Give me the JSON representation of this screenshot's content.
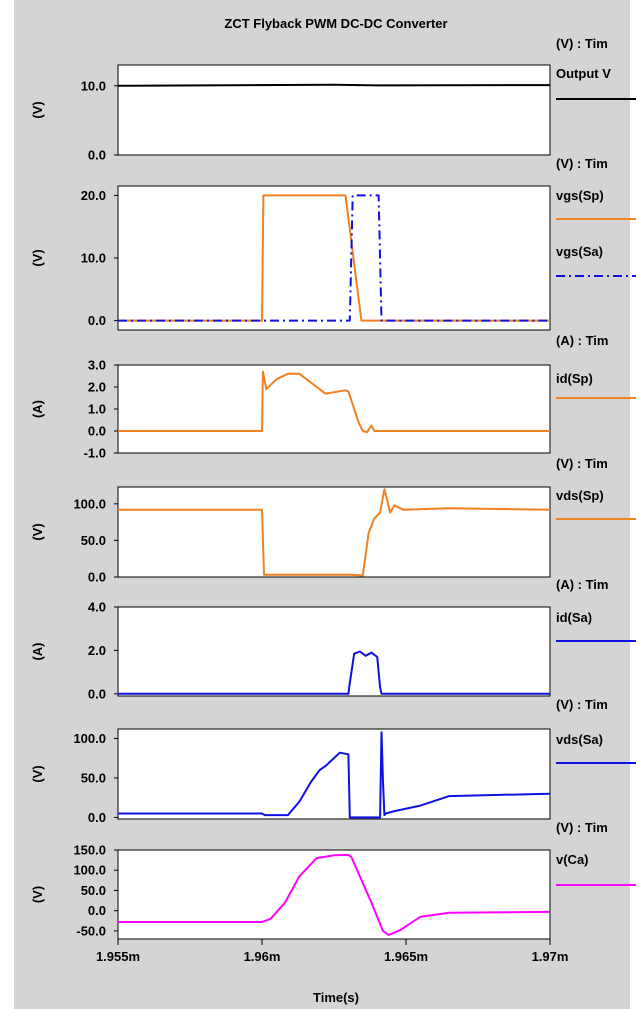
{
  "title": "ZCT Flyback PWM DC-DC Converter",
  "xlabel": "Time(s)",
  "x_ticks": [
    "1.955m",
    "1.96m",
    "1.965m",
    "1.97m"
  ],
  "x_tick_values": [
    1.955,
    1.96,
    1.965,
    1.97
  ],
  "xlim": [
    1.955,
    1.97
  ],
  "colors": {
    "background": "#d4d4d4",
    "plot_bg": "#ffffff",
    "black": "#000000",
    "orange": "#f08020",
    "blue": "#1010e0",
    "magenta": "#ff00ff"
  },
  "chart_data": [
    {
      "type": "line",
      "ylabel": "(V)",
      "ylim": [
        0,
        13
      ],
      "y_ticks": [
        "0.0",
        "10.0"
      ],
      "y_tick_values": [
        0,
        10
      ],
      "legend_header": "(V) : Tim",
      "series": [
        {
          "name": "Output V",
          "color": "#000000",
          "dash": "none",
          "x": [
            1.955,
            1.9625,
            1.964,
            1.97
          ],
          "y": [
            10.0,
            10.15,
            10.05,
            10.1
          ]
        }
      ]
    },
    {
      "type": "line",
      "ylabel": "(V)",
      "ylim": [
        -1.5,
        21.5
      ],
      "y_ticks": [
        "0.0",
        "10.0",
        "20.0"
      ],
      "y_tick_values": [
        0,
        10,
        20
      ],
      "legend_header": "(V) : Tim",
      "series": [
        {
          "name": "vgs(Sp)",
          "color": "#f08020",
          "dash": "none",
          "x": [
            1.955,
            1.96,
            1.96005,
            1.9629,
            1.96345,
            1.97
          ],
          "y": [
            0,
            0,
            20,
            20,
            0,
            0
          ]
        },
        {
          "name": "vgs(Sa)",
          "color": "#1010e0",
          "dash": "dashdot",
          "x": [
            1.955,
            1.96305,
            1.96315,
            1.96405,
            1.96415,
            1.97
          ],
          "y": [
            0,
            0,
            20,
            20,
            0,
            0
          ]
        }
      ]
    },
    {
      "type": "line",
      "ylabel": "(A)",
      "ylim": [
        -1.0,
        3.0
      ],
      "y_ticks": [
        "-1.0",
        "0.0",
        "1.0",
        "2.0",
        "3.0"
      ],
      "y_tick_values": [
        -1,
        0,
        1,
        2,
        3
      ],
      "legend_header": "(A) : Tim",
      "series": [
        {
          "name": "id(Sp)",
          "color": "#f08020",
          "dash": "none",
          "x": [
            1.955,
            1.96,
            1.96003,
            1.96015,
            1.9605,
            1.9609,
            1.9613,
            1.9622,
            1.9629,
            1.963,
            1.96335,
            1.9635,
            1.96365,
            1.9638,
            1.9639,
            1.9641,
            1.97
          ],
          "y": [
            0,
            0,
            2.7,
            1.9,
            2.35,
            2.6,
            2.6,
            1.7,
            1.85,
            1.8,
            0.4,
            0.0,
            -0.05,
            0.25,
            0.0,
            0.0,
            0.0
          ]
        }
      ]
    },
    {
      "type": "line",
      "ylabel": "(V)",
      "ylim": [
        0,
        123
      ],
      "y_ticks": [
        "0.0",
        "50.0",
        "100.0"
      ],
      "y_tick_values": [
        0,
        50,
        100
      ],
      "legend_header": "(V) : Tim",
      "series": [
        {
          "name": "vds(Sp)",
          "color": "#f08020",
          "dash": "none",
          "x": [
            1.955,
            1.96,
            1.96007,
            1.9631,
            1.9635,
            1.9637,
            1.9639,
            1.9641,
            1.96425,
            1.96445,
            1.9646,
            1.9649,
            1.9665,
            1.97
          ],
          "y": [
            92,
            92,
            3,
            3,
            2,
            60,
            80,
            88,
            120,
            88,
            98,
            92,
            94,
            92
          ]
        }
      ]
    },
    {
      "type": "line",
      "ylabel": "(A)",
      "ylim": [
        -0.1,
        4.0
      ],
      "y_ticks": [
        "0.0",
        "2.0",
        "4.0"
      ],
      "y_tick_values": [
        0,
        2,
        4
      ],
      "legend_header": "(A) : Tim",
      "series": [
        {
          "name": "id(Sa)",
          "color": "#1010e0",
          "dash": "none",
          "x": [
            1.955,
            1.963,
            1.96305,
            1.9632,
            1.9634,
            1.9636,
            1.9638,
            1.964,
            1.9641,
            1.96415,
            1.9643,
            1.97
          ],
          "y": [
            0,
            0,
            0.5,
            1.85,
            1.95,
            1.75,
            1.9,
            1.7,
            0.3,
            0,
            0,
            0
          ]
        }
      ]
    },
    {
      "type": "line",
      "ylabel": "(V)",
      "ylim": [
        -2,
        112
      ],
      "y_ticks": [
        "0.0",
        "50.0",
        "100.0"
      ],
      "y_tick_values": [
        0,
        50,
        100
      ],
      "legend_header": "(V) : Tim",
      "series": [
        {
          "name": "vds(Sa)",
          "color": "#1010e0",
          "dash": "none",
          "x": [
            1.955,
            1.96,
            1.9601,
            1.9609,
            1.9613,
            1.9617,
            1.962,
            1.9622,
            1.9627,
            1.963,
            1.96305,
            1.9631,
            1.9641,
            1.96415,
            1.9642,
            1.96425,
            1.9643,
            1.9646,
            1.9655,
            1.9665,
            1.97
          ],
          "y": [
            5,
            5,
            3,
            3,
            20,
            45,
            60,
            65,
            82,
            80,
            0,
            0,
            0,
            108,
            45,
            3,
            5,
            8,
            15,
            27,
            30
          ]
        }
      ]
    },
    {
      "type": "line",
      "ylabel": "(V)",
      "ylim": [
        -70,
        150
      ],
      "y_ticks": [
        "-50.0",
        "0.0",
        "50.0",
        "100.0",
        "150.0"
      ],
      "y_tick_values": [
        -50,
        0,
        50,
        100,
        150
      ],
      "legend_header": "(V) : Tim",
      "series": [
        {
          "name": "v(Ca)",
          "color": "#ff00ff",
          "dash": "none",
          "x": [
            1.955,
            1.96,
            1.9603,
            1.9608,
            1.9613,
            1.9619,
            1.9625,
            1.963,
            1.9631,
            1.9634,
            1.9638,
            1.9642,
            1.9644,
            1.9648,
            1.9655,
            1.9665,
            1.97
          ],
          "y": [
            -28,
            -28,
            -20,
            20,
            85,
            130,
            137,
            138,
            133,
            85,
            20,
            -50,
            -60,
            -48,
            -15,
            -5,
            -3
          ]
        }
      ]
    }
  ]
}
